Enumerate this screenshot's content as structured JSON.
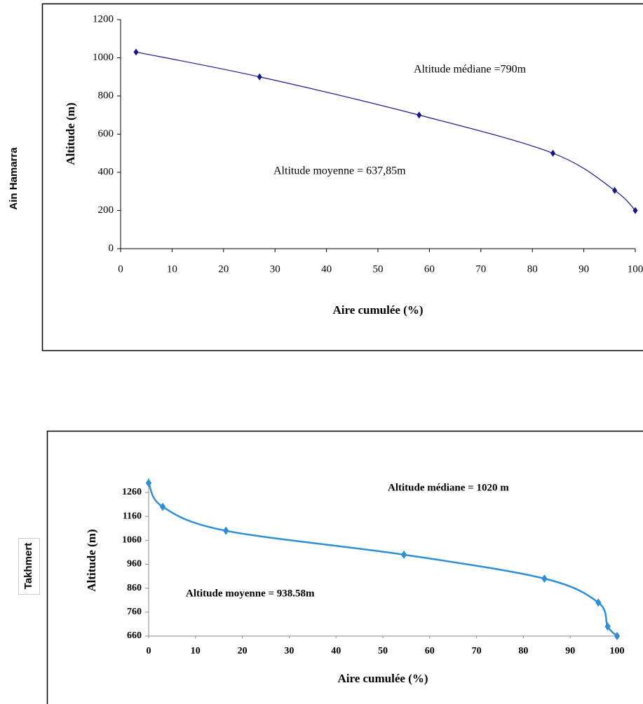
{
  "chart_data": [
    {
      "type": "line",
      "side_label": "Ain Hamarra",
      "xlabel": "Aire cumulée (%)",
      "ylabel": "Altitude (m)",
      "annotations": [
        "Altitude médiane =790m",
        "Altitude moyenne = 637,85m"
      ],
      "x": [
        3,
        27,
        58,
        84,
        96,
        100
      ],
      "series": [
        {
          "color": "#15158a",
          "values": [
            1030,
            900,
            700,
            500,
            305,
            200
          ]
        }
      ],
      "xlim": [
        0,
        100
      ],
      "ylim": [
        0,
        1200
      ],
      "xticks": [
        0,
        10,
        20,
        30,
        40,
        50,
        60,
        70,
        80,
        90,
        100
      ],
      "yticks": [
        0,
        200,
        400,
        600,
        800,
        1000,
        1200
      ]
    },
    {
      "type": "line",
      "side_label": "Takhmert",
      "xlabel": "Aire cumulée (%)",
      "ylabel": "Altitude (m)",
      "annotations": [
        "Altitude médiane = 1020 m",
        "Altitude moyenne = 938.58m"
      ],
      "x": [
        0,
        3,
        16.5,
        54.5,
        84.5,
        96,
        98,
        100
      ],
      "series": [
        {
          "color": "#2e8fd6",
          "values": [
            1300,
            1200,
            1100,
            1000,
            900,
            800,
            700,
            660
          ]
        }
      ],
      "xlim": [
        0,
        100
      ],
      "ylim": [
        660,
        1320
      ],
      "xticks": [
        0,
        10,
        20,
        30,
        40,
        50,
        60,
        70,
        80,
        90,
        100
      ],
      "yticks": [
        660,
        760,
        860,
        960,
        1060,
        1160,
        1260
      ]
    }
  ]
}
